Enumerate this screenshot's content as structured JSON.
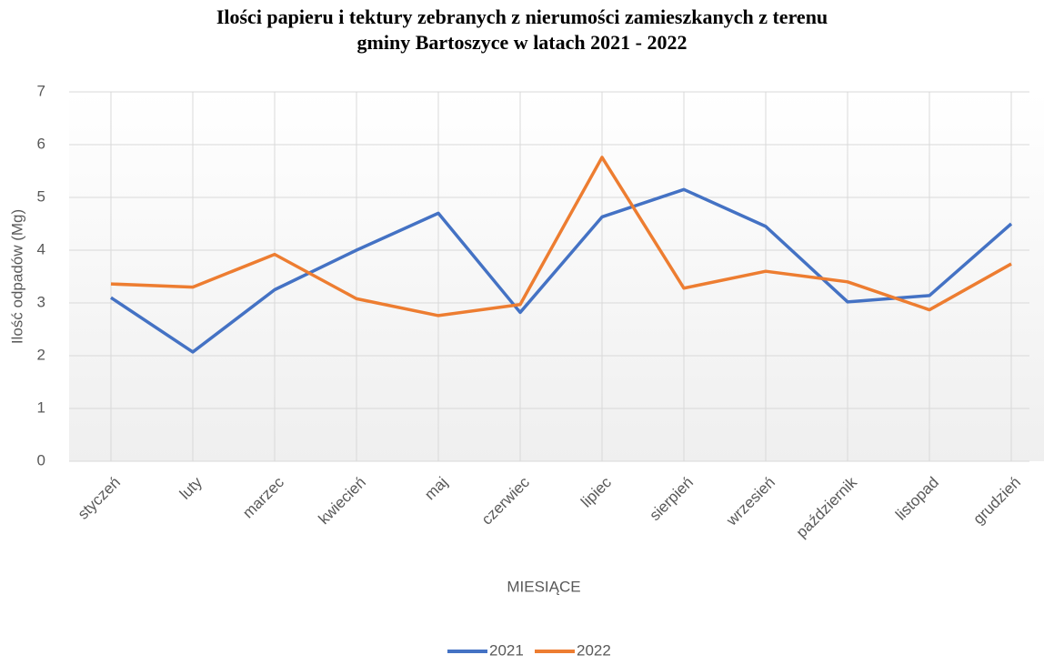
{
  "chart_data": {
    "type": "line",
    "title": [
      "Ilości papieru i tektury zebranych z nierumości zamieszkanych z terenu",
      "gminy Bartoszyce w latach 2021 - 2022"
    ],
    "x_label": "MIESIĄCE",
    "y_label": "Ilość odpadów (Mg)",
    "categories": [
      "styczeń",
      "luty",
      "marzec",
      "kwiecień",
      "maj",
      "czerwiec",
      "lipiec",
      "sierpień",
      "wrzesień",
      "październik",
      "listopad",
      "grudzień"
    ],
    "series": [
      {
        "name": "2021",
        "color": "#4472c4",
        "values": [
          3.1,
          2.07,
          3.25,
          4.0,
          4.7,
          2.82,
          4.63,
          5.15,
          4.45,
          3.02,
          3.14,
          4.5
        ]
      },
      {
        "name": "2022",
        "color": "#ed7d31",
        "values": [
          3.36,
          3.3,
          3.92,
          3.08,
          2.76,
          2.97,
          5.76,
          3.28,
          3.6,
          3.4,
          2.87,
          3.74
        ]
      }
    ],
    "ylim": [
      0,
      7
    ],
    "yticks": [
      0,
      1,
      2,
      3,
      4,
      5,
      6,
      7
    ],
    "grid": true,
    "xgrid": true,
    "legend": "bottom"
  }
}
